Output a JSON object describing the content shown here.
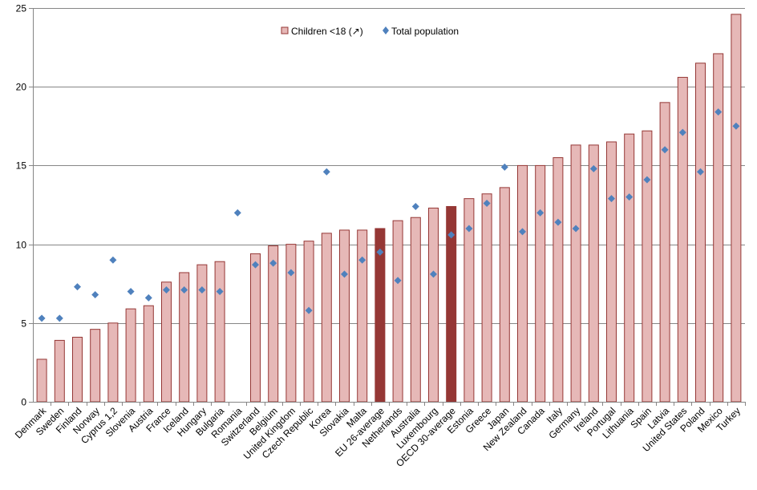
{
  "chart_data": {
    "type": "bar",
    "title": "",
    "xlabel": "",
    "ylabel": "",
    "ylim": [
      0,
      25
    ],
    "yticks": [
      0,
      5,
      10,
      15,
      20,
      25
    ],
    "grid": true,
    "legend_position": "top-center",
    "categories": [
      "Denmark",
      "Sweden",
      "Finland",
      "Norway",
      "Cyprus 1,2",
      "Slovenia",
      "Austria",
      "France",
      "Iceland",
      "Hungary",
      "Bulgaria",
      "Romania",
      "Switzerland",
      "Belgium",
      "United Kingdom",
      "Czech Republic",
      "Korea",
      "Slovakia",
      "Malta",
      "EU 26-average",
      "Netherlands",
      "Australia",
      "Luxembourg",
      "OECD 30-average",
      "Estonia",
      "Greece",
      "Japan",
      "New Zealand",
      "Canada",
      "Italy",
      "Germany",
      "Ireland",
      "Portugal",
      "Lithuania",
      "Spain",
      "Latvia",
      "United States",
      "Poland",
      "Mexico",
      "Turkey"
    ],
    "highlighted_categories": [
      "EU 26-average",
      "OECD 30-average"
    ],
    "series": [
      {
        "name": "Children <18 (↗)",
        "kind": "bar",
        "color": "#e6b8b7",
        "edge_color": "#953735",
        "highlight_color": "#953735",
        "values": [
          2.7,
          3.9,
          4.1,
          4.6,
          5.0,
          5.9,
          6.1,
          7.6,
          8.2,
          8.7,
          8.9,
          null,
          9.4,
          9.9,
          10.0,
          10.2,
          10.7,
          10.9,
          10.9,
          11.0,
          11.5,
          11.7,
          12.3,
          12.4,
          12.9,
          13.2,
          13.6,
          15.0,
          15.0,
          15.5,
          16.3,
          16.3,
          16.5,
          17.0,
          17.2,
          19.0,
          20.6,
          21.5,
          22.1,
          24.6
        ]
      },
      {
        "name": "Total population",
        "kind": "marker",
        "color": "#4f81bd",
        "values": [
          5.3,
          5.3,
          7.3,
          6.8,
          9.0,
          7.0,
          6.6,
          7.1,
          7.1,
          7.1,
          7.0,
          12.0,
          8.7,
          8.8,
          8.2,
          5.8,
          14.6,
          8.1,
          9.0,
          9.5,
          7.7,
          12.4,
          8.1,
          10.6,
          11.0,
          12.6,
          14.9,
          10.8,
          12.0,
          11.4,
          11.0,
          14.8,
          12.9,
          13.0,
          14.1,
          16.0,
          17.1,
          14.6,
          18.4,
          17.5
        ]
      }
    ]
  }
}
